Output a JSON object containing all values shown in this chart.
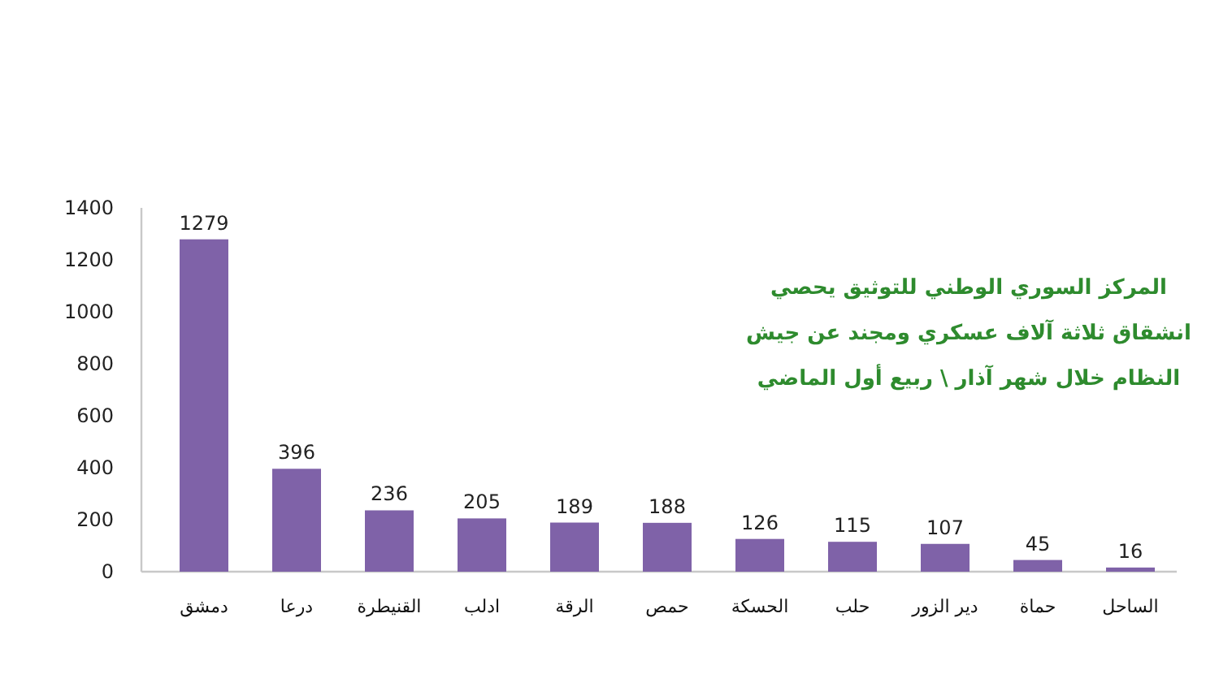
{
  "chart_data": {
    "type": "bar",
    "title": "المركز السوري الوطني للتوثيق يحصي\nانشقاق ثلاثة آلاف عسكري ومجند عن جيش\nالنظام خلال شهر آذار \\ ربيع أول الماضي",
    "categories": [
      "دمشق",
      "درعا",
      "القنيطرة",
      "ادلب",
      "الرقة",
      "حمص",
      "الحسكة",
      "حلب",
      "دير الزور",
      "حماة",
      "الساحل"
    ],
    "values": [
      1279,
      396,
      236,
      205,
      189,
      188,
      126,
      115,
      107,
      45,
      16
    ],
    "color": "#7f62a8",
    "ylim": [
      0,
      1400
    ],
    "yticks": [
      0,
      200,
      400,
      600,
      800,
      1000,
      1200,
      1400
    ],
    "data_labels": true
  }
}
